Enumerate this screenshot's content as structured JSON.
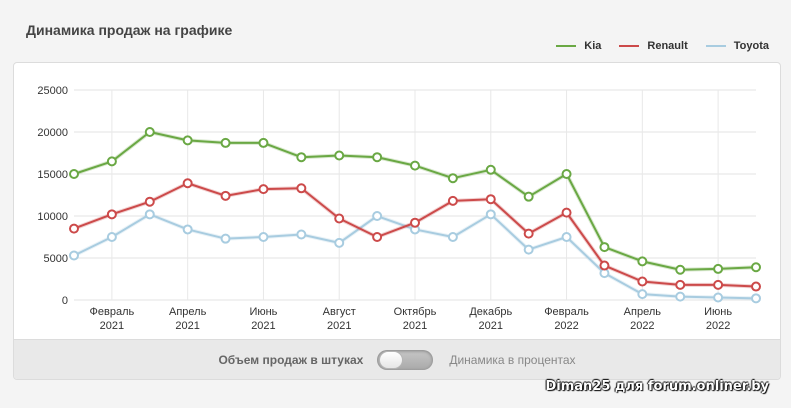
{
  "chart_title": "Динамика продаж на графике",
  "legend": [
    {
      "name": "Kia",
      "color": "#6aa844"
    },
    {
      "name": "Renault",
      "color": "#cc4a4a"
    },
    {
      "name": "Toyota",
      "color": "#a8cce0"
    }
  ],
  "toggle": {
    "left_label": "Объем продаж в штуках",
    "right_label": "Динамика в процентах",
    "selected": "left"
  },
  "watermark": "Diman25 для forum.onliner.by",
  "chart_data": {
    "type": "line",
    "ylim": [
      0,
      25000
    ],
    "y_ticks": [
      "0",
      "5000",
      "10000",
      "15000",
      "20000",
      "25000"
    ],
    "grid": true,
    "legend_position": "top-right",
    "x_count": 19,
    "x_tick_labels": [
      {
        "index": 1,
        "line1": "Февраль",
        "line2": "2021"
      },
      {
        "index": 3,
        "line1": "Апрель",
        "line2": "2021"
      },
      {
        "index": 5,
        "line1": "Июнь",
        "line2": "2021"
      },
      {
        "index": 7,
        "line1": "Август",
        "line2": "2021"
      },
      {
        "index": 9,
        "line1": "Октябрь",
        "line2": "2021"
      },
      {
        "index": 11,
        "line1": "Декабрь",
        "line2": "2021"
      },
      {
        "index": 13,
        "line1": "Февраль",
        "line2": "2022"
      },
      {
        "index": 15,
        "line1": "Апрель",
        "line2": "2022"
      },
      {
        "index": 17,
        "line1": "Июнь",
        "line2": "2022"
      }
    ],
    "series": [
      {
        "name": "Kia",
        "color": "#6aa844",
        "values": [
          15000,
          16500,
          20000,
          19000,
          18700,
          18700,
          17000,
          17200,
          17000,
          16000,
          14500,
          15500,
          12300,
          15000,
          6300,
          4600,
          3600,
          3700,
          3900
        ]
      },
      {
        "name": "Renault",
        "color": "#cc4a4a",
        "values": [
          8500,
          10200,
          11700,
          13900,
          12400,
          13200,
          13300,
          9700,
          7500,
          9200,
          11800,
          12000,
          7900,
          10400,
          4100,
          2200,
          1800,
          1800,
          1600
        ]
      },
      {
        "name": "Toyota",
        "color": "#a8cce0",
        "values": [
          5300,
          7500,
          10200,
          8400,
          7300,
          7500,
          7800,
          6800,
          10000,
          8400,
          7500,
          10200,
          6000,
          7500,
          3200,
          700,
          400,
          300,
          200
        ]
      }
    ]
  }
}
